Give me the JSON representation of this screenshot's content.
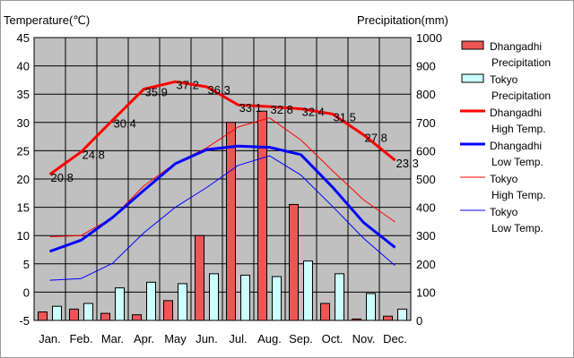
{
  "chart_data": {
    "type": "bar",
    "left_axis_title": "Temperature(℃)",
    "right_axis_title": "Precipitation(mm)",
    "left_ylim": [
      -5,
      45
    ],
    "left_ticks": [
      "45",
      "40",
      "35",
      "30",
      "25",
      "20",
      "15",
      "10",
      "5",
      "0",
      "-5"
    ],
    "right_ylim": [
      0,
      1000
    ],
    "right_ticks": [
      "1000",
      "900",
      "800",
      "700",
      "600",
      "500",
      "400",
      "300",
      "200",
      "100",
      "0"
    ],
    "grid": true,
    "legend_position": "right",
    "categories": [
      "Jan.",
      "Feb.",
      "Mar.",
      "Apr.",
      "May",
      "Jun.",
      "Jul.",
      "Aug.",
      "Sep.",
      "Oct.",
      "Nov.",
      "Dec."
    ],
    "series": [
      {
        "name": "Dhangadhi Precipitation",
        "kind": "bar",
        "axis": "right",
        "color": "#ee5555",
        "values": [
          30,
          40,
          25,
          20,
          70,
          300,
          700,
          740,
          410,
          60,
          5,
          15
        ]
      },
      {
        "name": "Tokyo Precipitation",
        "kind": "bar",
        "axis": "right",
        "color": "#ccffff",
        "values": [
          50,
          60,
          115,
          135,
          130,
          165,
          160,
          155,
          210,
          165,
          95,
          40
        ]
      },
      {
        "name": "Dhangadhi High Temp.",
        "kind": "line",
        "axis": "left",
        "color": "#ff0000",
        "width": 3,
        "values": [
          20.8,
          24.8,
          30.4,
          35.9,
          37.2,
          36.3,
          33.1,
          32.8,
          32.4,
          31.5,
          27.8,
          23.3
        ],
        "labels": [
          "20.8",
          "24.8",
          "30.4",
          "35.9",
          "37.2",
          "36.3",
          "33.1",
          "32.8",
          "32.4",
          "31.5",
          "27.8",
          "23.3"
        ]
      },
      {
        "name": "Dhangadhi Low Temp.",
        "kind": "line",
        "axis": "left",
        "color": "#0000ff",
        "width": 3,
        "values": [
          7.2,
          9.2,
          13.2,
          18,
          22.7,
          25.2,
          25.8,
          25.6,
          24.3,
          18.6,
          12.3,
          7.9
        ]
      },
      {
        "name": "Tokyo High Temp.",
        "kind": "line",
        "axis": "left",
        "color": "#ff0000",
        "width": 1,
        "values": [
          9.8,
          10,
          13.2,
          18.8,
          22.8,
          25.5,
          29.2,
          30.8,
          26.9,
          21.5,
          16.3,
          12.4
        ]
      },
      {
        "name": "Tokyo Low Temp.",
        "kind": "line",
        "axis": "left",
        "color": "#0000ff",
        "width": 1,
        "values": [
          2.1,
          2.4,
          5.1,
          10.5,
          15,
          18.5,
          22.4,
          24.1,
          20.7,
          15.2,
          9.5,
          4.7
        ]
      }
    ],
    "legend": [
      {
        "line1": "Dhangadhi",
        "line2": "Precipitation",
        "swatch": "bar",
        "color": "#ee5555",
        "width": 1
      },
      {
        "line1": "Tokyo",
        "line2": "Precipitation",
        "swatch": "bar",
        "color": "#ccffff",
        "width": 1
      },
      {
        "line1": "Dhangadhi",
        "line2": "High Temp.",
        "swatch": "line",
        "color": "#ff0000",
        "width": 3
      },
      {
        "line1": "Dhangadhi",
        "line2": "Low Temp.",
        "swatch": "line",
        "color": "#0000ff",
        "width": 3
      },
      {
        "line1": "Tokyo",
        "line2": "High Temp.",
        "swatch": "line",
        "color": "#ff0000",
        "width": 1
      },
      {
        "line1": "Tokyo",
        "line2": "Low Temp.",
        "swatch": "line",
        "color": "#0000ff",
        "width": 1
      }
    ]
  }
}
